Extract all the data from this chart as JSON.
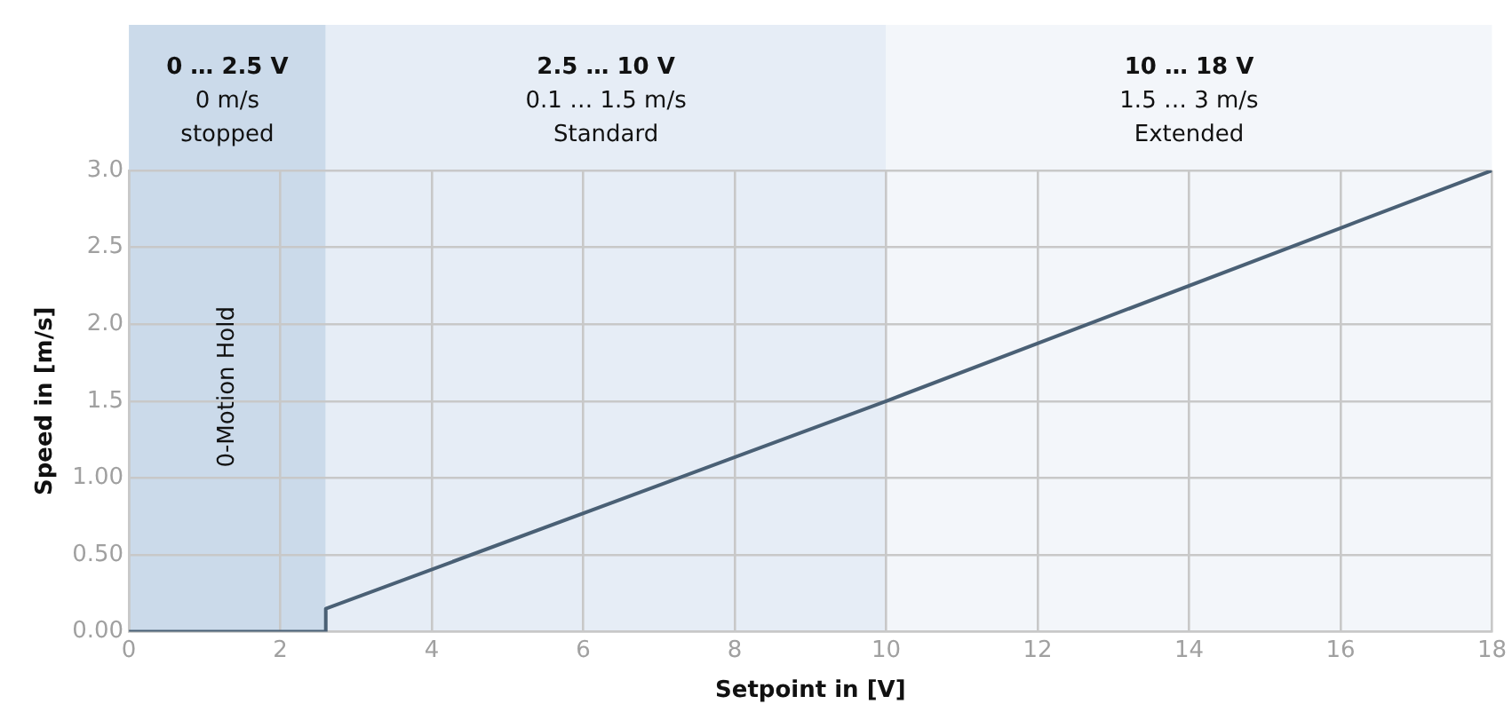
{
  "chart_data": {
    "type": "line",
    "xlabel": "Setpoint in [V]",
    "ylabel": "Speed in [m/s]",
    "series": [
      {
        "color": "#4a6075",
        "x": [
          0,
          2.6,
          2.6,
          10,
          18
        ],
        "values": [
          0,
          0,
          0.15,
          1.5,
          3
        ]
      }
    ],
    "xlim": [
      0,
      18
    ],
    "xticks": [
      0,
      2,
      4,
      6,
      8,
      10,
      12,
      14,
      16,
      18
    ],
    "ylim": [
      0,
      3
    ],
    "yticks": [
      {
        "value": 0,
        "label": "0.00"
      },
      {
        "value": 0.5,
        "label": "0.50"
      },
      {
        "value": 1,
        "label": "1.00"
      },
      1.5,
      {
        "value": 2,
        "label": "2.0"
      },
      2.5,
      {
        "value": 3,
        "label": "3.0"
      }
    ],
    "bands": [
      {
        "axis": "x",
        "from": 0,
        "to": 2.6,
        "label": "0 … 2.5 V\n0 m/s\nstopped",
        "color": "#cbdaea"
      },
      {
        "axis": "x",
        "from": 2.6,
        "to": 10,
        "label": "2.5 … 10 V\n0.1 … 1.5 m/s\nStandard",
        "color": "#e6edf6"
      },
      {
        "axis": "x",
        "from": 10,
        "to": 18,
        "label": "10 … 18 V\n1.5 … 3 m/s\nExtended",
        "color": "#f3f6fa"
      }
    ],
    "annotations": [
      "0-Motion Hold"
    ],
    "grid": true,
    "legend": false,
    "marker": "none",
    "line_style": "solid"
  }
}
